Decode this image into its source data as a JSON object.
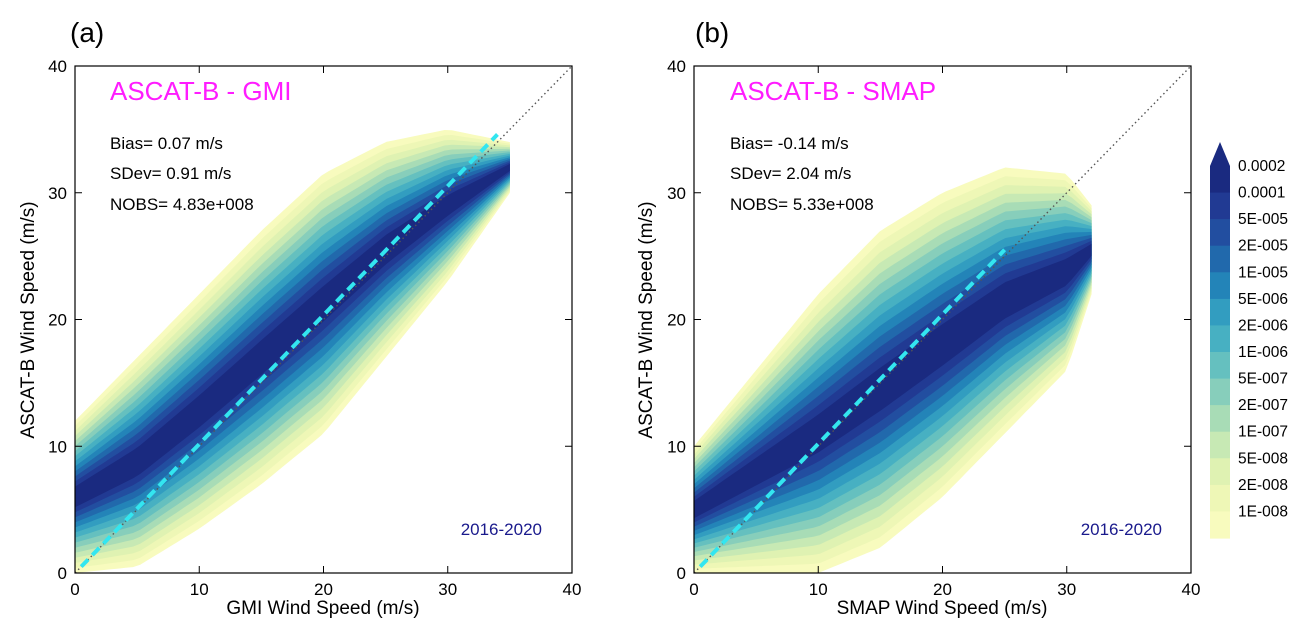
{
  "colors": {
    "title": "#ff1cff",
    "period": "#1a1a8c",
    "fit_line": "#33e6f0",
    "one_to_one": "#555555"
  },
  "colorbar": {
    "labels": [
      "0.0002",
      "0.0001",
      "5E-005",
      "2E-005",
      "1E-005",
      "5E-006",
      "2E-006",
      "1E-006",
      "5E-007",
      "2E-007",
      "1E-007",
      "5E-008",
      "2E-008",
      "1E-008"
    ],
    "colors": [
      "#f8fbbe",
      "#eef7b6",
      "#dff2b2",
      "#c7e9b4",
      "#a8dcb6",
      "#87cebb",
      "#65c0bf",
      "#47b0c2",
      "#329dc0",
      "#2384b8",
      "#2169ac",
      "#224ea0",
      "#213a93",
      "#1a2a80"
    ]
  },
  "chart_data": [
    {
      "type": "heatmap",
      "panel_label": "(a)",
      "title": "ASCAT-B - GMI",
      "xlabel": "GMI Wind Speed (m/s)",
      "ylabel": "ASCAT-B  Wind Speed (m/s)",
      "xlim": [
        0,
        40
      ],
      "ylim": [
        0,
        40
      ],
      "xticks": [
        "0",
        "10",
        "20",
        "30",
        "40"
      ],
      "yticks": [
        "0",
        "10",
        "20",
        "30",
        "40"
      ],
      "stats": {
        "bias": "Bias=  0.07 m/s",
        "sdev": "SDev= 0.91 m/s",
        "nobs": "NOBS= 4.83e+008"
      },
      "period": "2016-2020",
      "mean_line": {
        "x": [
          0.5,
          34
        ],
        "y": [
          0.5,
          34.6
        ]
      },
      "density_envelope": {
        "x": [
          0,
          5,
          10,
          15,
          20,
          25,
          30,
          35
        ],
        "y_low": [
          0,
          0.5,
          3.5,
          7,
          11,
          17,
          23,
          30
        ],
        "y_high": [
          12,
          17,
          22,
          27,
          31.5,
          34,
          35,
          34
        ]
      }
    },
    {
      "type": "heatmap",
      "panel_label": "(b)",
      "title": "ASCAT-B - SMAP",
      "xlabel": "SMAP Wind Speed (m/s)",
      "ylabel": "ASCAT-B  Wind Speed (m/s)",
      "xlim": [
        0,
        40
      ],
      "ylim": [
        0,
        40
      ],
      "xticks": [
        "0",
        "10",
        "20",
        "30",
        "40"
      ],
      "yticks": [
        "0",
        "10",
        "20",
        "30",
        "40"
      ],
      "stats": {
        "bias": "Bias= -0.14 m/s",
        "sdev": "SDev= 2.04 m/s",
        "nobs": "NOBS= 5.33e+008"
      },
      "period": "2016-2020",
      "mean_line": {
        "x": [
          0.5,
          25
        ],
        "y": [
          0.5,
          25.5
        ]
      },
      "density_envelope": {
        "x": [
          0,
          5,
          10,
          15,
          20,
          25,
          30,
          32
        ],
        "y_low": [
          0,
          0,
          0,
          2,
          6,
          11,
          16,
          22
        ],
        "y_high": [
          10,
          16,
          22,
          27,
          30,
          32,
          31.5,
          29
        ]
      }
    }
  ]
}
